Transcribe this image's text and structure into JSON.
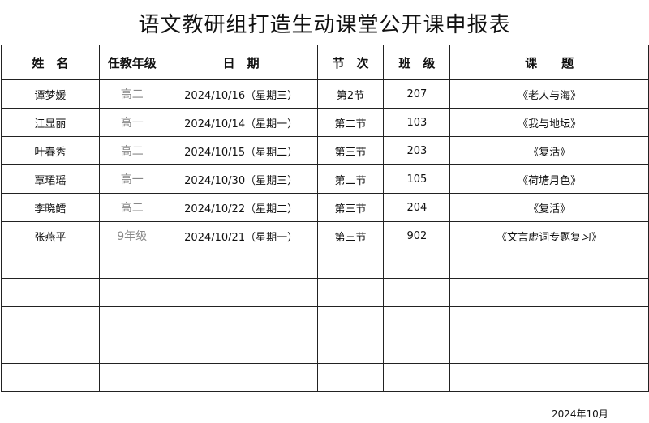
{
  "title": "语文教研组打造生动课堂公开课申报表",
  "headers": [
    "姓　名",
    "任教年级",
    "日　期",
    "节　次",
    "班　级",
    "课　　题"
  ],
  "rows": [
    [
      "谭梦媛",
      "高二",
      "2024/10/16（星期三）",
      "第2节",
      "207",
      "《老人与海》"
    ],
    [
      "江显丽",
      "高一",
      "2024/10/14（星期一）",
      "第二节",
      "103",
      "《我与地坛》"
    ],
    [
      "叶春秀",
      "高二",
      "2024/10/15（星期二）",
      "第三节",
      "203",
      "《复活》"
    ],
    [
      "覃珺瑶",
      "高一",
      "2024/10/30（星期三）",
      "第二节",
      "105",
      "《荷塘月色》"
    ],
    [
      "李晓鳕",
      "高二",
      "2024/10/22（星期二）",
      "第三节",
      "204",
      "《复活》"
    ],
    [
      "张燕平",
      "9年级",
      "2024/10/21（星期一）",
      "第三节",
      "902",
      "《文言虚词专题复习》"
    ]
  ],
  "empty_rows": 5,
  "footer": "2024年10月"
}
